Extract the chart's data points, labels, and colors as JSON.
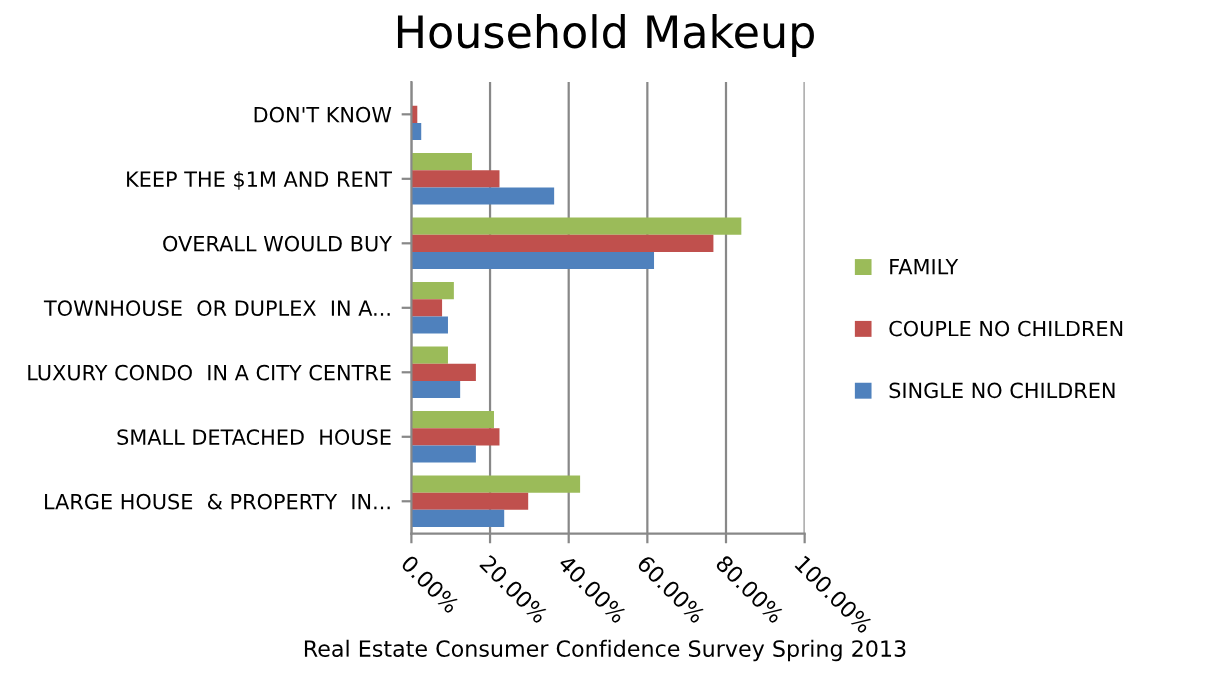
{
  "chart_data": {
    "type": "bar",
    "orientation": "horizontal",
    "title": "Household Makeup",
    "categories": [
      "DON'T KNOW",
      "KEEP THE $1M AND RENT",
      "OVERALL WOULD BUY",
      "TOWNHOUSE  OR DUPLEX  IN A...",
      "LUXURY CONDO  IN A CITY CENTRE",
      "SMALL DETACHED  HOUSE",
      "LARGE HOUSE  & PROPERTY  IN..."
    ],
    "series": [
      {
        "name": "FAMILY",
        "color": "#9bbb59",
        "values": [
          null,
          15.4,
          83.9,
          10.8,
          9.3,
          21,
          42.9
        ]
      },
      {
        "name": "COUPLE NO CHILDREN",
        "color": "#c0504d",
        "values": [
          1.5,
          22.4,
          76.8,
          7.8,
          16.4,
          22.4,
          29.7
        ]
      },
      {
        "name": "SINGLE NO CHILDREN",
        "color": "#4f81bd",
        "values": [
          2.5,
          36.3,
          61.7,
          9.3,
          12.4,
          16.4,
          23.6
        ]
      }
    ],
    "xlim": [
      0,
      100
    ],
    "xticks": [
      {
        "value": 0,
        "label": "0.00%"
      },
      {
        "value": 20,
        "label": "20.00%"
      },
      {
        "value": 40,
        "label": "40.00%"
      },
      {
        "value": 60,
        "label": "60.00%"
      },
      {
        "value": 80,
        "label": "80.00%"
      },
      {
        "value": 100,
        "label": "100.00%"
      }
    ],
    "grid": "x",
    "legend": "right",
    "annotations": [
      "Real Estate Consumer Confidence Survey Spring 2013"
    ]
  }
}
